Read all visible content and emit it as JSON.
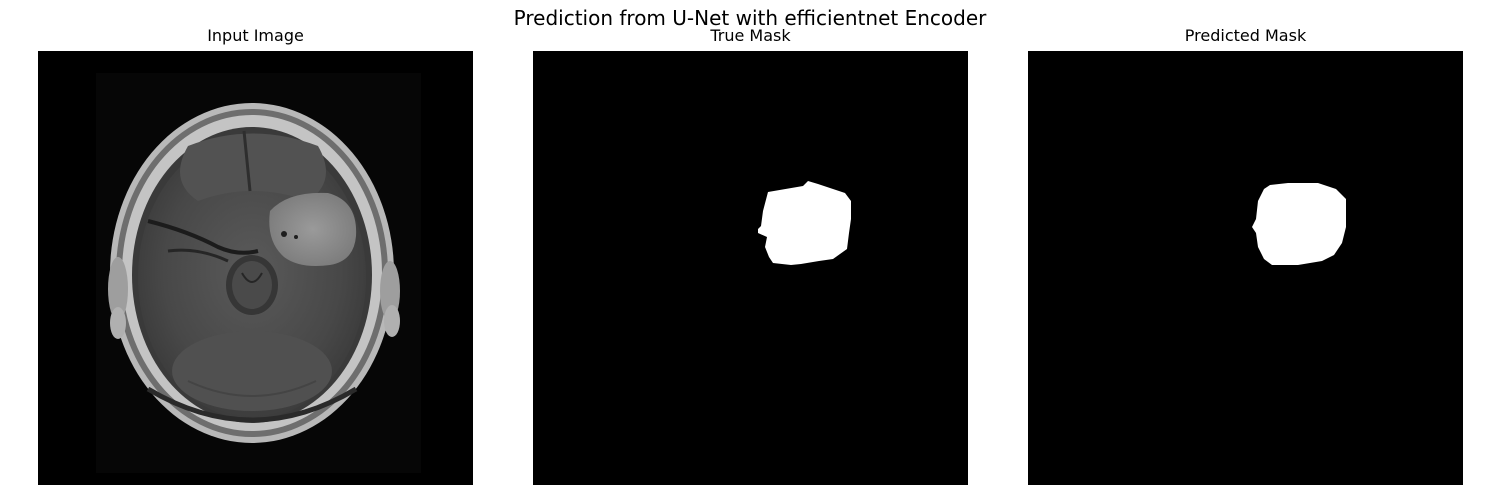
{
  "figure": {
    "title": "Prediction from U-Net with efficientnet Encoder"
  },
  "panels": [
    {
      "title": "Input Image",
      "image": "mri-brain-scan-axial-slice"
    },
    {
      "title": "True Mask",
      "image": "binary-tumor-mask-ground-truth"
    },
    {
      "title": "Predicted Mask",
      "image": "binary-tumor-mask-predicted"
    }
  ],
  "colors": {
    "background": "#ffffff",
    "image_background": "#000000",
    "mask_foreground": "#ffffff"
  }
}
